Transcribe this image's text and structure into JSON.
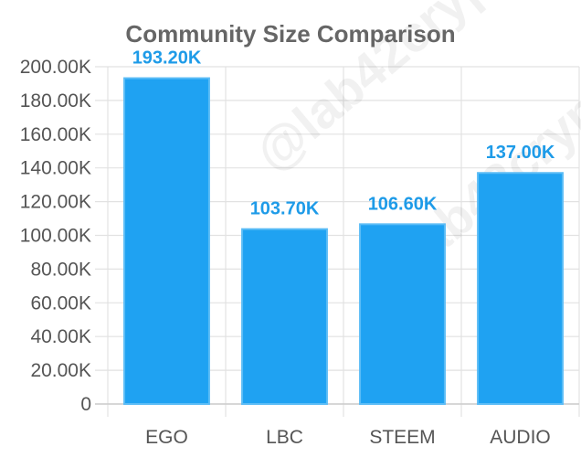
{
  "chart_data": {
    "type": "bar",
    "title": "Community Size Comparison",
    "xlabel": "",
    "ylabel": "",
    "categories": [
      "EGO",
      "LBC",
      "STEEM",
      "AUDIO"
    ],
    "values": [
      193200,
      103700,
      106600,
      137000
    ],
    "data_labels": [
      "193.20K",
      "103.70K",
      "106.60K",
      "137.00K"
    ],
    "ylim": [
      0,
      200000
    ],
    "yticks": [
      0,
      20000,
      40000,
      60000,
      80000,
      100000,
      120000,
      140000,
      160000,
      180000,
      200000
    ],
    "ytick_labels": [
      "0",
      "20.00K",
      "40.00K",
      "60.00K",
      "80.00K",
      "100.00K",
      "120.00K",
      "140.00K",
      "160.00K",
      "180.00K",
      "200.00K"
    ],
    "grid": true,
    "legend": "none",
    "colors": {
      "bar": "#1fa2f2",
      "bar_border": "#5bbcf6",
      "data_label": "#1e9be8",
      "grid": "#e2e2e2"
    }
  },
  "watermark": "@lab42crypto"
}
